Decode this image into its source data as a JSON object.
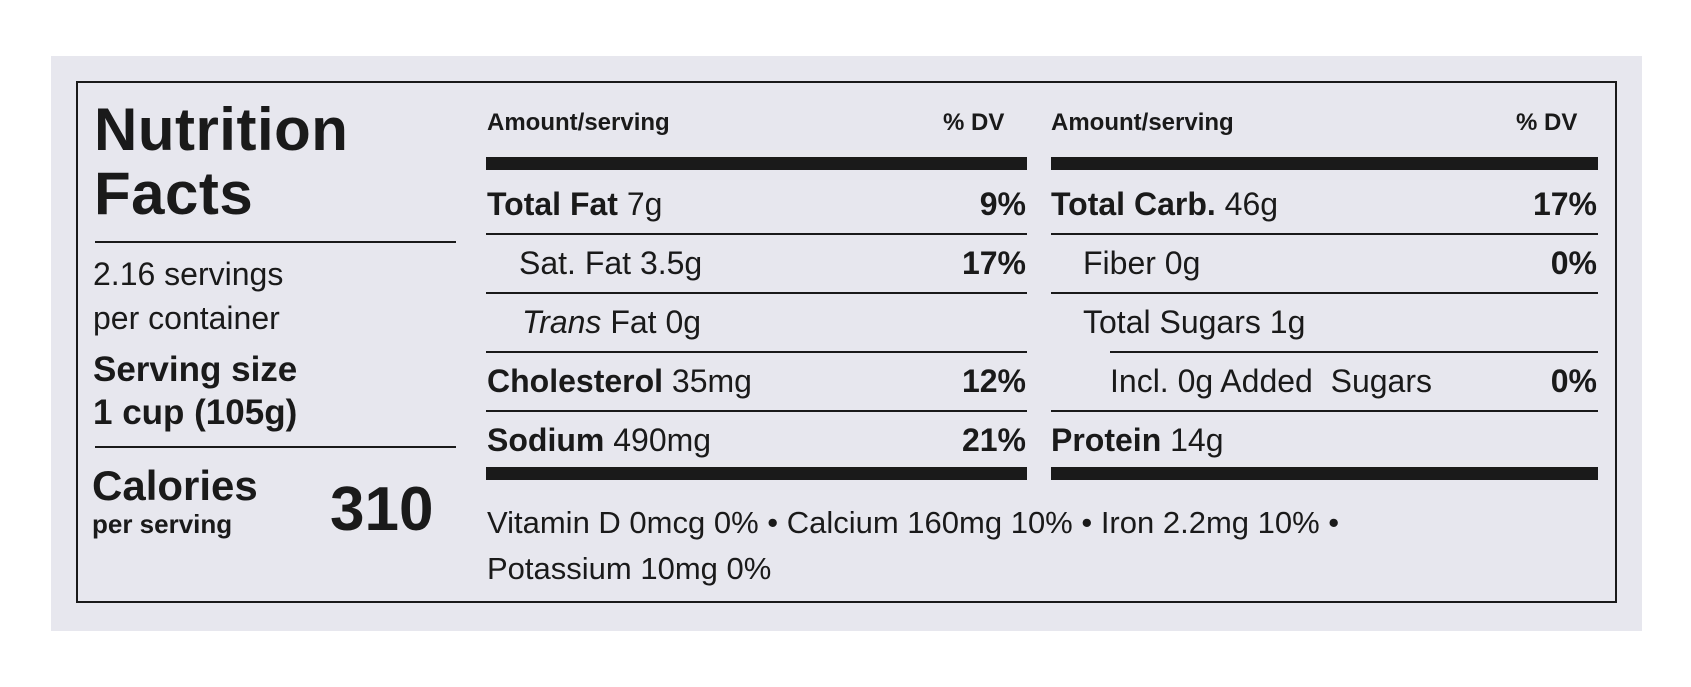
{
  "label": {
    "title_line1": "Nutrition",
    "title_line2": "Facts",
    "servings_line1": "2.16 servings",
    "servings_line2": "per container",
    "serving_size_label": "Serving size",
    "serving_size_value": "1 cup (105g)",
    "calories_label": "Calories",
    "calories_sub": "per serving",
    "calories_value": "310"
  },
  "left_table": {
    "header_amount": "Amount/serving",
    "header_dv": "% DV",
    "rows": [
      {
        "name": "Total Fat",
        "amount": "7g",
        "dv": "9%"
      },
      {
        "name": "Sat. Fat",
        "amount": "3.5g",
        "dv": "17%"
      },
      {
        "name_italic": "Trans",
        "name": "Fat",
        "amount": "0g",
        "dv": ""
      },
      {
        "name": "Cholesterol",
        "amount": "35mg",
        "dv": "12%"
      },
      {
        "name": "Sodium",
        "amount": "490mg",
        "dv": "21%"
      }
    ]
  },
  "right_table": {
    "header_amount": "Amount/serving",
    "header_dv": "% DV",
    "rows": [
      {
        "name": "Total Carb.",
        "amount": "46g",
        "dv": "17%"
      },
      {
        "name": "Fiber",
        "amount": "0g",
        "dv": "0%"
      },
      {
        "name": "Total Sugars",
        "amount": "1g",
        "dv": ""
      },
      {
        "name": "Incl. 0g Added  Sugars",
        "amount": "",
        "dv": "0%"
      },
      {
        "name": "Protein",
        "amount": "14g",
        "dv": ""
      }
    ]
  },
  "footer": {
    "line1": "Vitamin D 0mcg 0% • Calcium 160mg 10% • Iron 2.2mg 10% •",
    "line2": "Potassium 10mg 0%"
  }
}
